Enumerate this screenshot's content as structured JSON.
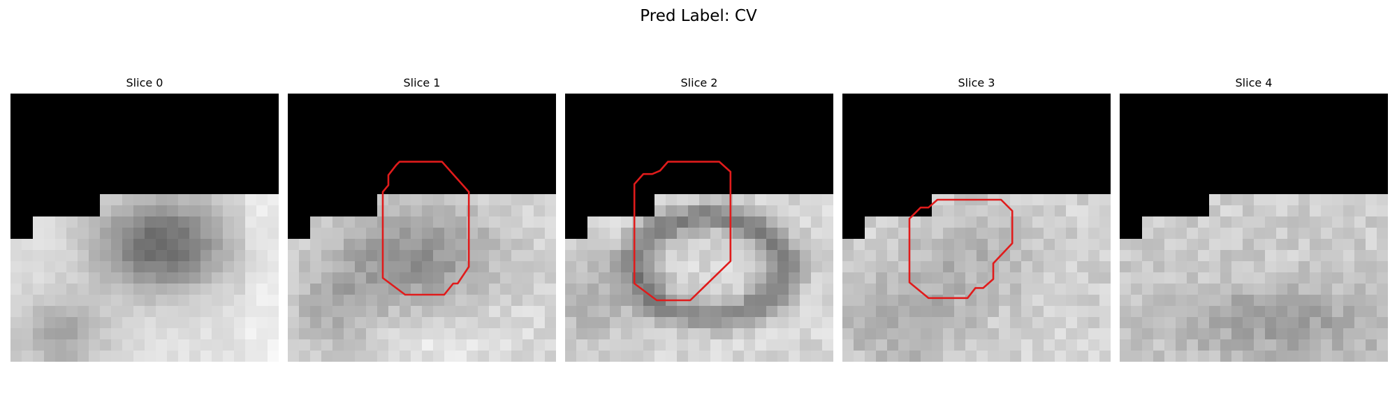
{
  "figure": {
    "title": "Pred Label: CV",
    "contour_color": "#e01b1b"
  },
  "panels": [
    {
      "title": "Slice 0",
      "has_contour": false,
      "dark_region": "mask-black-top",
      "texture": "dark-blob-center"
    },
    {
      "title": "Slice 1",
      "has_contour": true,
      "dark_region": "mask-black-top",
      "texture": "mid-grey-center"
    },
    {
      "title": "Slice 2",
      "has_contour": true,
      "dark_region": "mask-black-top",
      "texture": "dark-ring"
    },
    {
      "title": "Slice 3",
      "has_contour": true,
      "dark_region": "mask-black-top",
      "texture": "light-noisy"
    },
    {
      "title": "Slice 4",
      "has_contour": false,
      "dark_region": "mask-black-top",
      "texture": "light-noisy"
    }
  ]
}
